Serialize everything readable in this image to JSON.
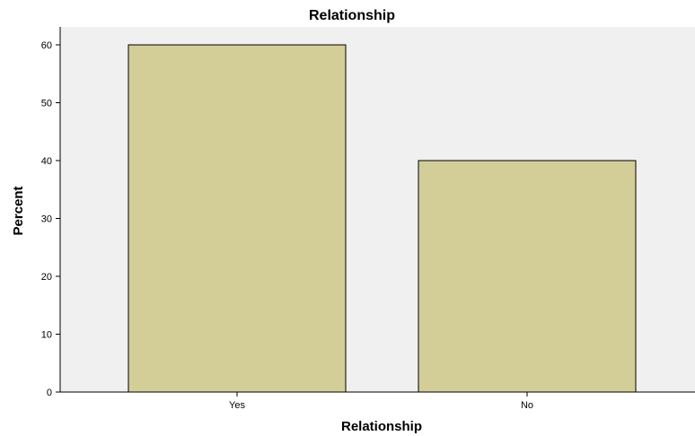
{
  "chart_data": {
    "type": "bar",
    "title": "Relationship",
    "xlabel": "Relationship",
    "ylabel": "Percent",
    "categories": [
      "Yes",
      "No"
    ],
    "values": [
      60,
      40
    ],
    "ylim": [
      0,
      60
    ],
    "yticks": [
      0,
      10,
      20,
      30,
      40,
      50,
      60
    ],
    "grid": false,
    "colors": {
      "bar_fill": "#d3ce98",
      "bar_stroke": "#000000",
      "plot_background": "#f0f0f0",
      "page_background": "#ffffff"
    }
  }
}
